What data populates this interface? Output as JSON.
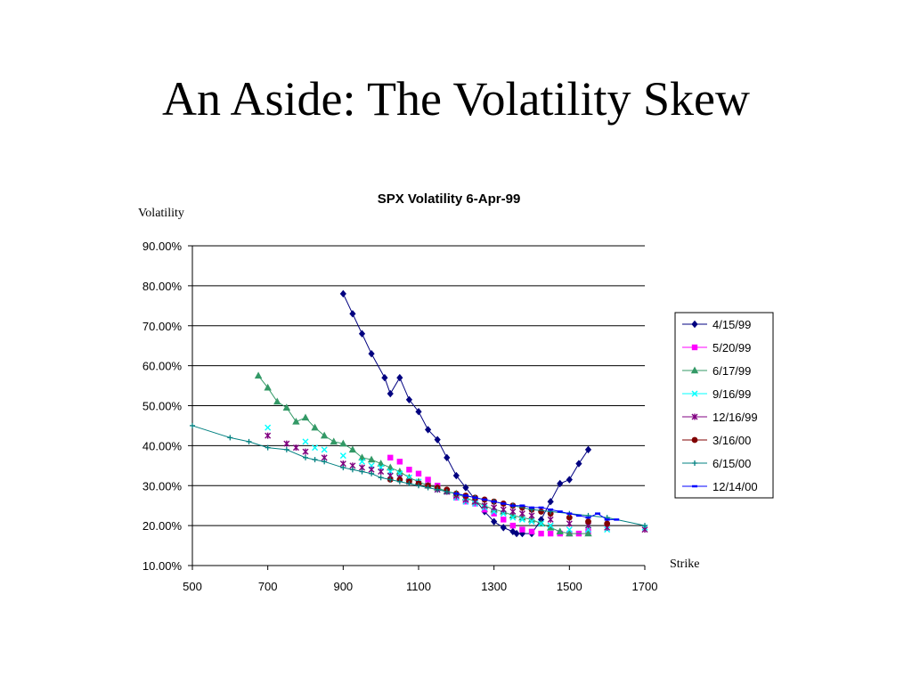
{
  "slide": {
    "title": "An Aside: The Volatility Skew"
  },
  "chart_data": {
    "type": "line",
    "title": "SPX Volatility 6-Apr-99",
    "xlabel": "Strike",
    "ylabel": "Volatility",
    "xlim": [
      500,
      1700
    ],
    "ylim": [
      0.1,
      0.9
    ],
    "x_ticks": [
      500,
      700,
      900,
      1100,
      1300,
      1500,
      1700
    ],
    "y_ticks": [
      0.1,
      0.2,
      0.3,
      0.4,
      0.5,
      0.6,
      0.7,
      0.8,
      0.9
    ],
    "y_tick_labels": [
      "10.00%",
      "20.00%",
      "30.00%",
      "40.00%",
      "50.00%",
      "60.00%",
      "70.00%",
      "80.00%",
      "90.00%"
    ],
    "x_tick_labels": [
      "500",
      "700",
      "900",
      "1100",
      "1300",
      "1500",
      "1700"
    ],
    "grid": "horizontal",
    "legend_position": "right",
    "series": [
      {
        "name": "4/15/99",
        "color": "#000080",
        "marker": "diamond",
        "line": true,
        "points": [
          [
            900,
            0.78
          ],
          [
            925,
            0.73
          ],
          [
            950,
            0.68
          ],
          [
            975,
            0.63
          ],
          [
            1010,
            0.57
          ],
          [
            1025,
            0.53
          ],
          [
            1050,
            0.57
          ],
          [
            1075,
            0.515
          ],
          [
            1100,
            0.485
          ],
          [
            1125,
            0.44
          ],
          [
            1150,
            0.415
          ],
          [
            1175,
            0.37
          ],
          [
            1200,
            0.325
          ],
          [
            1225,
            0.295
          ],
          [
            1250,
            0.265
          ],
          [
            1275,
            0.235
          ],
          [
            1300,
            0.21
          ],
          [
            1325,
            0.195
          ],
          [
            1350,
            0.185
          ],
          [
            1360,
            0.18
          ],
          [
            1375,
            0.18
          ],
          [
            1400,
            0.18
          ],
          [
            1425,
            0.215
          ],
          [
            1450,
            0.26
          ],
          [
            1475,
            0.305
          ],
          [
            1500,
            0.315
          ],
          [
            1525,
            0.355
          ],
          [
            1550,
            0.39
          ]
        ]
      },
      {
        "name": "5/20/99",
        "color": "#ff00ff",
        "marker": "square",
        "line": false,
        "points": [
          [
            1025,
            0.37
          ],
          [
            1050,
            0.36
          ],
          [
            1075,
            0.34
          ],
          [
            1100,
            0.33
          ],
          [
            1125,
            0.315
          ],
          [
            1150,
            0.3
          ],
          [
            1175,
            0.285
          ],
          [
            1200,
            0.27
          ],
          [
            1225,
            0.26
          ],
          [
            1250,
            0.255
          ],
          [
            1275,
            0.24
          ],
          [
            1300,
            0.23
          ],
          [
            1325,
            0.215
          ],
          [
            1350,
            0.2
          ],
          [
            1375,
            0.19
          ],
          [
            1400,
            0.185
          ],
          [
            1425,
            0.18
          ],
          [
            1450,
            0.18
          ],
          [
            1475,
            0.18
          ],
          [
            1500,
            0.18
          ],
          [
            1525,
            0.18
          ],
          [
            1550,
            0.185
          ]
        ]
      },
      {
        "name": "6/17/99",
        "color": "#339966",
        "marker": "triangle",
        "line": true,
        "points": [
          [
            675,
            0.575
          ],
          [
            700,
            0.545
          ],
          [
            725,
            0.51
          ],
          [
            750,
            0.495
          ],
          [
            775,
            0.46
          ],
          [
            800,
            0.47
          ],
          [
            825,
            0.445
          ],
          [
            850,
            0.425
          ],
          [
            875,
            0.41
          ],
          [
            900,
            0.405
          ],
          [
            925,
            0.39
          ],
          [
            950,
            0.37
          ],
          [
            975,
            0.365
          ],
          [
            1000,
            0.355
          ],
          [
            1025,
            0.345
          ],
          [
            1050,
            0.335
          ],
          [
            1075,
            0.32
          ],
          [
            1100,
            0.31
          ],
          [
            1125,
            0.3
          ],
          [
            1150,
            0.295
          ],
          [
            1175,
            0.285
          ],
          [
            1200,
            0.28
          ],
          [
            1225,
            0.27
          ],
          [
            1250,
            0.26
          ],
          [
            1275,
            0.25
          ],
          [
            1300,
            0.24
          ],
          [
            1325,
            0.235
          ],
          [
            1350,
            0.225
          ],
          [
            1375,
            0.22
          ],
          [
            1400,
            0.215
          ],
          [
            1425,
            0.205
          ],
          [
            1450,
            0.195
          ],
          [
            1475,
            0.185
          ],
          [
            1500,
            0.18
          ],
          [
            1550,
            0.18
          ]
        ]
      },
      {
        "name": "9/16/99",
        "color": "#00ffff",
        "marker": "x",
        "line": false,
        "points": [
          [
            700,
            0.445
          ],
          [
            800,
            0.41
          ],
          [
            825,
            0.395
          ],
          [
            850,
            0.39
          ],
          [
            900,
            0.375
          ],
          [
            950,
            0.36
          ],
          [
            975,
            0.35
          ],
          [
            1000,
            0.345
          ],
          [
            1025,
            0.335
          ],
          [
            1050,
            0.33
          ],
          [
            1075,
            0.32
          ],
          [
            1100,
            0.31
          ],
          [
            1125,
            0.3
          ],
          [
            1150,
            0.29
          ],
          [
            1175,
            0.285
          ],
          [
            1200,
            0.27
          ],
          [
            1225,
            0.26
          ],
          [
            1250,
            0.255
          ],
          [
            1275,
            0.245
          ],
          [
            1300,
            0.235
          ],
          [
            1325,
            0.23
          ],
          [
            1350,
            0.22
          ],
          [
            1375,
            0.215
          ],
          [
            1400,
            0.21
          ],
          [
            1425,
            0.205
          ],
          [
            1450,
            0.2
          ],
          [
            1500,
            0.19
          ],
          [
            1550,
            0.19
          ],
          [
            1600,
            0.19
          ],
          [
            1700,
            0.195
          ]
        ]
      },
      {
        "name": "12/16/99",
        "color": "#800080",
        "marker": "star",
        "line": false,
        "points": [
          [
            700,
            0.425
          ],
          [
            750,
            0.405
          ],
          [
            775,
            0.395
          ],
          [
            800,
            0.385
          ],
          [
            850,
            0.37
          ],
          [
            900,
            0.355
          ],
          [
            925,
            0.35
          ],
          [
            950,
            0.345
          ],
          [
            975,
            0.34
          ],
          [
            1000,
            0.335
          ],
          [
            1025,
            0.325
          ],
          [
            1050,
            0.32
          ],
          [
            1075,
            0.31
          ],
          [
            1100,
            0.305
          ],
          [
            1125,
            0.3
          ],
          [
            1150,
            0.29
          ],
          [
            1175,
            0.285
          ],
          [
            1200,
            0.275
          ],
          [
            1225,
            0.265
          ],
          [
            1250,
            0.26
          ],
          [
            1275,
            0.25
          ],
          [
            1300,
            0.245
          ],
          [
            1325,
            0.24
          ],
          [
            1350,
            0.235
          ],
          [
            1375,
            0.23
          ],
          [
            1400,
            0.225
          ],
          [
            1450,
            0.215
          ],
          [
            1500,
            0.205
          ],
          [
            1550,
            0.2
          ],
          [
            1600,
            0.195
          ],
          [
            1700,
            0.19
          ]
        ]
      },
      {
        "name": "3/16/00",
        "color": "#800000",
        "marker": "circle",
        "line": false,
        "points": [
          [
            1025,
            0.315
          ],
          [
            1050,
            0.315
          ],
          [
            1075,
            0.31
          ],
          [
            1100,
            0.305
          ],
          [
            1125,
            0.3
          ],
          [
            1150,
            0.295
          ],
          [
            1175,
            0.29
          ],
          [
            1200,
            0.28
          ],
          [
            1225,
            0.275
          ],
          [
            1250,
            0.27
          ],
          [
            1275,
            0.265
          ],
          [
            1300,
            0.26
          ],
          [
            1325,
            0.255
          ],
          [
            1350,
            0.25
          ],
          [
            1375,
            0.245
          ],
          [
            1400,
            0.24
          ],
          [
            1425,
            0.235
          ],
          [
            1450,
            0.23
          ],
          [
            1500,
            0.22
          ],
          [
            1550,
            0.21
          ],
          [
            1600,
            0.205
          ]
        ]
      },
      {
        "name": "6/15/00",
        "color": "#008080",
        "marker": "plus",
        "line": true,
        "points": [
          [
            500,
            0.45
          ],
          [
            600,
            0.42
          ],
          [
            650,
            0.41
          ],
          [
            700,
            0.395
          ],
          [
            750,
            0.39
          ],
          [
            800,
            0.37
          ],
          [
            825,
            0.365
          ],
          [
            850,
            0.36
          ],
          [
            900,
            0.345
          ],
          [
            925,
            0.34
          ],
          [
            950,
            0.335
          ],
          [
            975,
            0.33
          ],
          [
            1000,
            0.32
          ],
          [
            1025,
            0.315
          ],
          [
            1050,
            0.31
          ],
          [
            1075,
            0.305
          ],
          [
            1100,
            0.3
          ],
          [
            1125,
            0.295
          ],
          [
            1150,
            0.29
          ],
          [
            1175,
            0.285
          ],
          [
            1200,
            0.28
          ],
          [
            1250,
            0.27
          ],
          [
            1300,
            0.26
          ],
          [
            1350,
            0.25
          ],
          [
            1400,
            0.24
          ],
          [
            1450,
            0.235
          ],
          [
            1500,
            0.23
          ],
          [
            1550,
            0.225
          ],
          [
            1600,
            0.22
          ],
          [
            1700,
            0.2
          ]
        ]
      },
      {
        "name": "12/14/00",
        "color": "#0000ff",
        "marker": "dash",
        "line": true,
        "points": [
          [
            1200,
            0.28
          ],
          [
            1225,
            0.275
          ],
          [
            1250,
            0.27
          ],
          [
            1275,
            0.265
          ],
          [
            1300,
            0.26
          ],
          [
            1325,
            0.255
          ],
          [
            1350,
            0.25
          ],
          [
            1375,
            0.25
          ],
          [
            1400,
            0.245
          ],
          [
            1425,
            0.245
          ],
          [
            1450,
            0.24
          ],
          [
            1475,
            0.235
          ],
          [
            1500,
            0.23
          ],
          [
            1525,
            0.225
          ],
          [
            1550,
            0.22
          ],
          [
            1575,
            0.23
          ],
          [
            1600,
            0.215
          ],
          [
            1625,
            0.215
          ]
        ]
      }
    ]
  }
}
